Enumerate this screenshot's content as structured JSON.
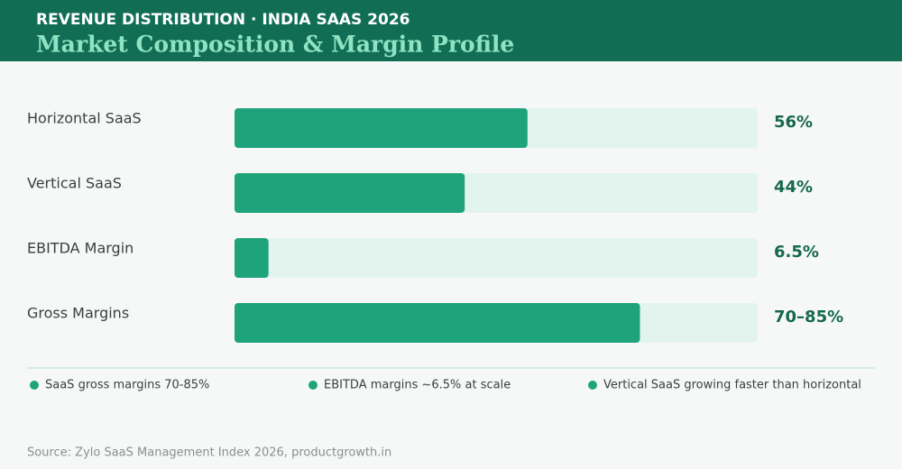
{
  "chart_data": {
    "type": "bar",
    "orientation": "horizontal",
    "kicker": "REVENUE DISTRIBUTION · INDIA SAAS 2026",
    "title": "Market Composition & Margin Profile",
    "categories": [
      "Horizontal SaaS",
      "Vertical SaaS",
      "EBITDA Margin",
      "Gross Margins"
    ],
    "values": [
      56,
      44,
      6.5,
      77.5
    ],
    "value_labels": [
      "56%",
      "44%",
      "6.5%",
      "70–85%"
    ],
    "color": "#1fa37a",
    "xlim": [
      0,
      100
    ],
    "notes": [
      "SaaS gross margins 70-85%",
      "EBITDA margins ~6.5% at scale",
      "Vertical SaaS growing faster than horizontal"
    ],
    "source": "Source: Zylo SaaS Management Index 2026, productgrowth.in"
  }
}
